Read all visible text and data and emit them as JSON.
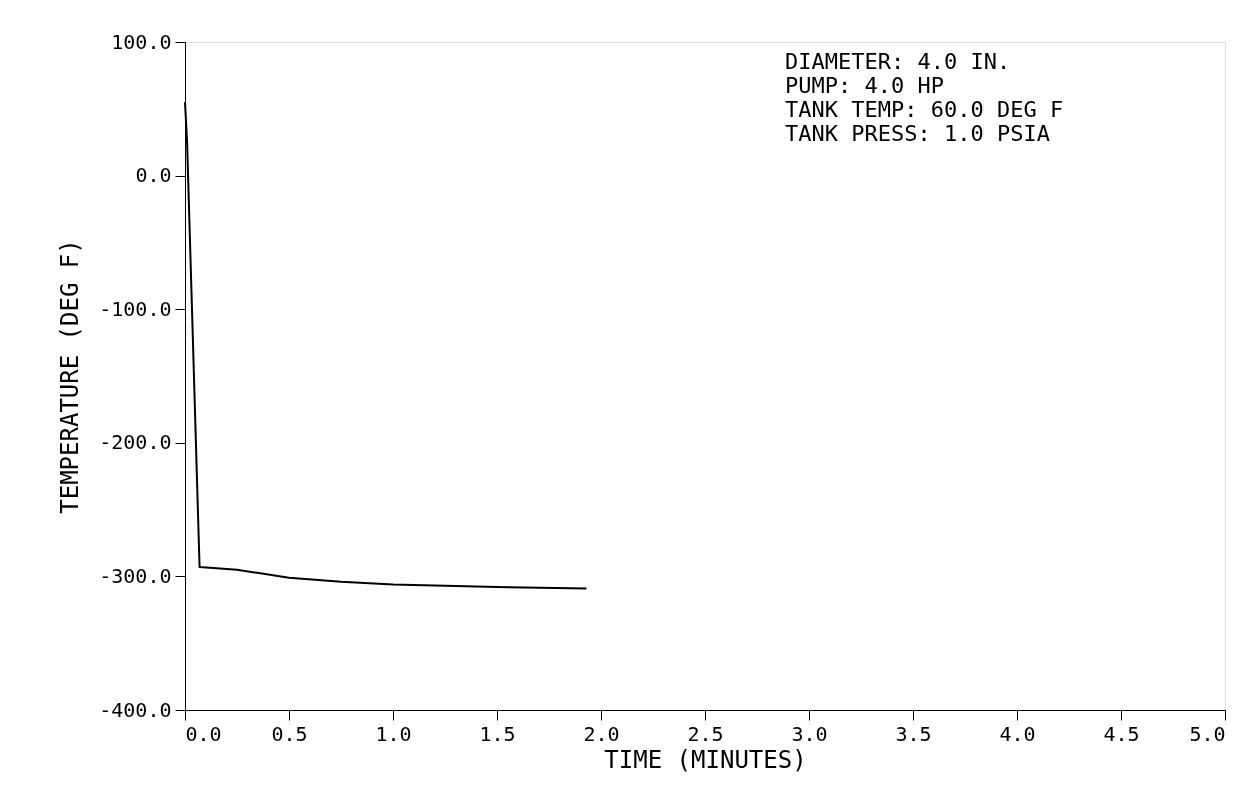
{
  "chart_data": {
    "type": "line",
    "xlabel": "TIME (MINUTES)",
    "ylabel": "TEMPERATURE (DEG F)",
    "x": [
      0,
      0.01,
      0.07,
      0.25,
      0.5,
      0.75,
      1.0,
      1.25,
      1.5,
      1.93
    ],
    "series": [
      {
        "color": "#000000",
        "values": [
          55,
          25,
          -293,
          -295,
          -301,
          -304,
          -306,
          -307,
          -308,
          -309
        ]
      }
    ],
    "xlim": [
      0,
      5
    ],
    "xticks": [
      {
        "value": 0,
        "label": "0.0"
      },
      {
        "value": 0.5,
        "label": "0.5"
      },
      {
        "value": 1,
        "label": "1.0"
      },
      {
        "value": 1.5,
        "label": "1.5"
      },
      {
        "value": 2,
        "label": "2.0"
      },
      {
        "value": 2.5,
        "label": "2.5"
      },
      {
        "value": 3,
        "label": "3.0"
      },
      {
        "value": 3.5,
        "label": "3.5"
      },
      {
        "value": 4,
        "label": "4.0"
      },
      {
        "value": 4.5,
        "label": "4.5"
      },
      {
        "value": 5,
        "label": "5.0"
      }
    ],
    "ylim": [
      -400,
      100
    ],
    "yticks": [
      {
        "value": -400,
        "label": "-400.0"
      },
      {
        "value": -300,
        "label": "-300.0"
      },
      {
        "value": -200,
        "label": "-200.0"
      },
      {
        "value": -100,
        "label": "-100.0"
      },
      {
        "value": 0,
        "label": "0.0"
      },
      {
        "value": 100,
        "label": "100.0"
      }
    ],
    "annotations": [
      "DIAMETER:  4.0 IN.",
      "PUMP:  4.0 HP",
      "TANK TEMP:   60.0 DEG F",
      "TANK PRESS:  1.0 PSIA"
    ],
    "grid": false,
    "marker": "none",
    "line_style": "solid"
  }
}
